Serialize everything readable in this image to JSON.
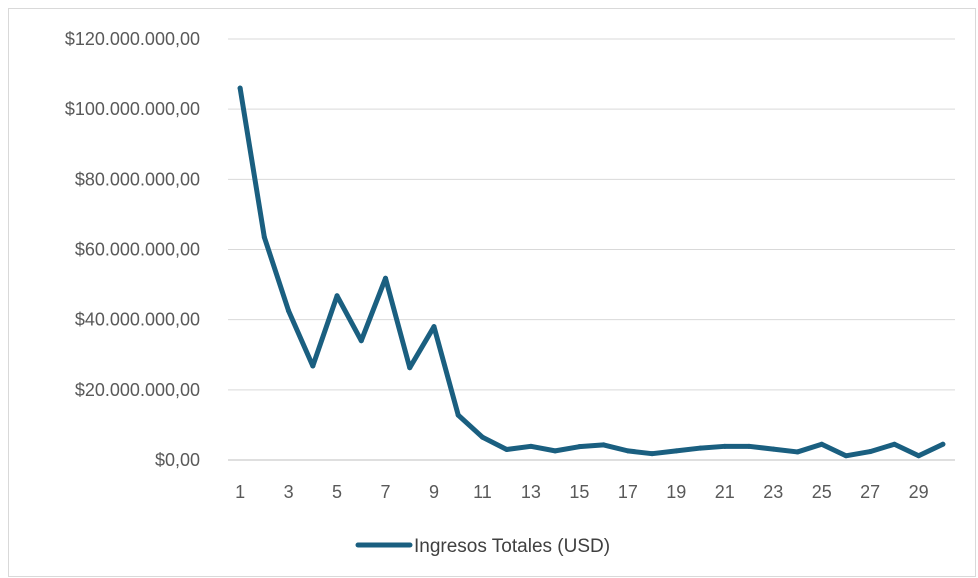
{
  "chart_data": {
    "type": "line",
    "title": "",
    "xlabel": "",
    "ylabel": "",
    "ylim": [
      0,
      120000000
    ],
    "y_ticks": [
      0,
      20000000,
      40000000,
      60000000,
      80000000,
      100000000,
      120000000
    ],
    "y_tick_labels": [
      "$0,00",
      "$20.000.000,00",
      "$40.000.000,00",
      "$60.000.000,00",
      "$80.000.000,00",
      "$100.000.000,00",
      "$120.000.000,00"
    ],
    "x": [
      1,
      2,
      3,
      4,
      5,
      6,
      7,
      8,
      9,
      10,
      11,
      12,
      13,
      14,
      15,
      16,
      17,
      18,
      19,
      20,
      21,
      22,
      23,
      24,
      25,
      26,
      27,
      28,
      29,
      30
    ],
    "x_tick_labels": [
      "1",
      "3",
      "5",
      "7",
      "9",
      "11",
      "13",
      "15",
      "17",
      "19",
      "21",
      "23",
      "25",
      "27",
      "29"
    ],
    "series": [
      {
        "name": "Ingresos Totales (USD)",
        "color": "#1a5f80",
        "values": [
          106000000,
          63500000,
          42500000,
          26800000,
          46800000,
          34000000,
          51800000,
          26300000,
          38000000,
          12800000,
          6500000,
          3000000,
          3900000,
          2600000,
          3800000,
          4300000,
          2600000,
          1800000,
          2600000,
          3400000,
          3900000,
          3900000,
          3100000,
          2300000,
          4500000,
          1200000,
          2400000,
          4500000,
          1200000,
          4500000
        ]
      }
    ],
    "grid": true,
    "legend_position": "bottom"
  }
}
